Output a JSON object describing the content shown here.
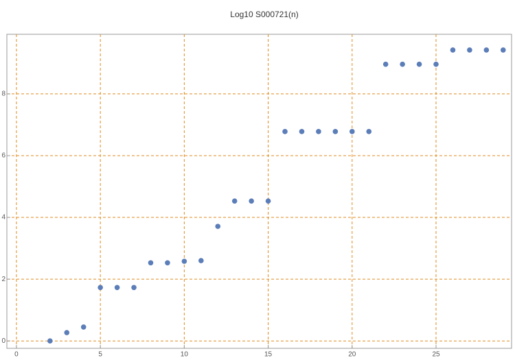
{
  "chart_data": {
    "type": "scatter",
    "title": "Log10 S000721(n)",
    "x": [
      2,
      3,
      4,
      5,
      6,
      7,
      8,
      9,
      10,
      11,
      12,
      13,
      14,
      15,
      16,
      17,
      18,
      19,
      20,
      21,
      22,
      23,
      24,
      25,
      26,
      27,
      28,
      29
    ],
    "series": [
      {
        "color": "#5b7db8",
        "values": [
          0,
          0.27,
          0.45,
          1.73,
          1.73,
          1.73,
          2.53,
          2.53,
          2.58,
          2.6,
          3.71,
          4.53,
          4.53,
          4.53,
          6.78,
          6.78,
          6.78,
          6.78,
          6.78,
          6.78,
          8.96,
          8.96,
          8.96,
          8.96,
          9.42,
          9.42,
          9.42,
          9.42
        ]
      }
    ],
    "xlim": [
      -0.57,
      29.5
    ],
    "ylim": [
      -0.24,
      9.93
    ],
    "xticks": [
      0,
      5,
      10,
      15,
      20,
      25
    ],
    "yticks": [
      0,
      2,
      4,
      6,
      8
    ],
    "grid": true,
    "grid_color": "#e08a1e"
  }
}
